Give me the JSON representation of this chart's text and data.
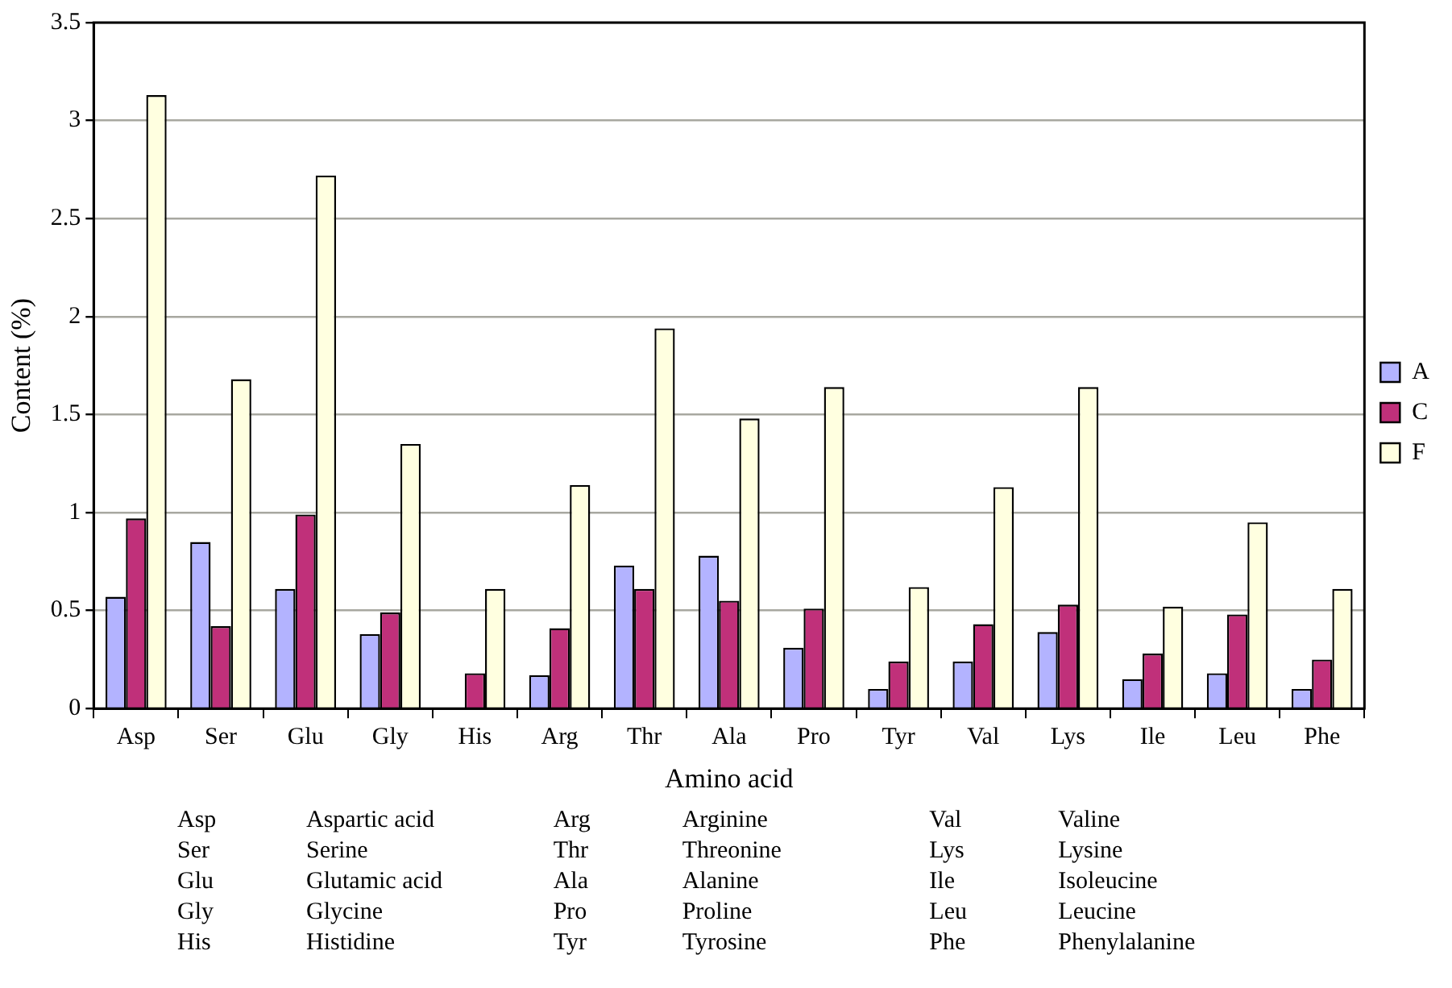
{
  "chart_data": {
    "type": "bar",
    "xlabel": "Amino acid",
    "ylabel": "Content (%)",
    "categories": [
      "Asp",
      "Ser",
      "Glu",
      "Gly",
      "His",
      "Arg",
      "Thr",
      "Ala",
      "Pro",
      "Tyr",
      "Val",
      "Lys",
      "Ile",
      "Leu",
      "Phe"
    ],
    "series": [
      {
        "name": "A",
        "color": "#b3b3ff",
        "values": [
          0.57,
          0.85,
          0.61,
          0.38,
          0,
          0.17,
          0.73,
          0.78,
          0.31,
          0.1,
          0.24,
          0.39,
          0.15,
          0.18,
          0.1
        ]
      },
      {
        "name": "C",
        "color": "#c0307a",
        "values": [
          0.97,
          0.42,
          0.99,
          0.49,
          0.18,
          0.41,
          0.61,
          0.55,
          0.51,
          0.24,
          0.43,
          0.53,
          0.28,
          0.48,
          0.25
        ]
      },
      {
        "name": "F",
        "color": "#ffffe0",
        "values": [
          3.13,
          1.68,
          2.72,
          1.35,
          0.61,
          1.14,
          1.94,
          1.48,
          1.64,
          0.62,
          1.13,
          1.64,
          0.52,
          0.95,
          0.61
        ]
      }
    ],
    "ylim": [
      0,
      3.5
    ],
    "yticks": [
      0,
      0.5,
      1,
      1.5,
      2,
      2.5,
      3,
      3.5
    ],
    "grid": "y",
    "legend": "right",
    "annotations": [
      "Asp Aspartic acid",
      "Ser Serine",
      "Glu Glutamic acid",
      "Gly Glycine",
      "His Histidine",
      "Arg Arginine",
      "Thr Threonine",
      "Ala Alanine",
      "Pro Proline",
      "Tyr Tyrosine",
      "Val Valine",
      "Lys Lysine",
      "Ile Isoleucine",
      "Leu Leucine",
      "Phe Phenylalanine"
    ]
  }
}
